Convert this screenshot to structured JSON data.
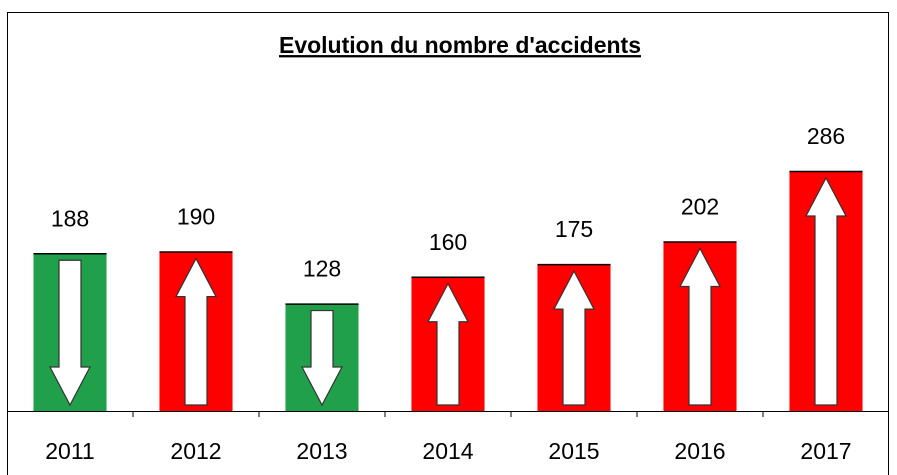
{
  "chart_data": {
    "type": "bar",
    "title": "Evolution du nombre d'accidents",
    "categories": [
      "2011",
      "2012",
      "2013",
      "2014",
      "2015",
      "2016",
      "2017"
    ],
    "values": [
      188,
      190,
      128,
      160,
      175,
      202,
      286
    ],
    "colors": [
      "#21a04c",
      "#ff0000",
      "#21a04c",
      "#ff0000",
      "#ff0000",
      "#ff0000",
      "#ff0000"
    ],
    "arrows": [
      "down",
      "up",
      "down",
      "up",
      "up",
      "up",
      "up"
    ]
  }
}
